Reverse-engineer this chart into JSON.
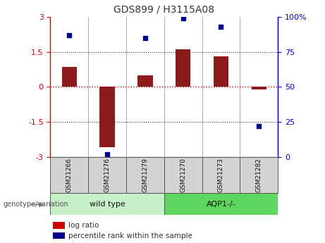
{
  "title": "GDS899 / H3115A08",
  "samples": [
    "GSM21266",
    "GSM21276",
    "GSM21279",
    "GSM21270",
    "GSM21273",
    "GSM21282"
  ],
  "log_ratio": [
    0.85,
    -2.6,
    0.5,
    1.6,
    1.3,
    -0.12
  ],
  "percentile_rank": [
    87,
    2,
    85,
    99,
    93,
    22
  ],
  "bar_color": "#8b1a1a",
  "dot_color": "#00008b",
  "ylim_left": [
    -3,
    3
  ],
  "ylim_right": [
    0,
    100
  ],
  "yticks_left": [
    -3,
    -1.5,
    0,
    1.5,
    3
  ],
  "yticks_right": [
    0,
    25,
    50,
    75,
    100
  ],
  "hline_zero_color": "#cc0000",
  "hline_dotted_color": "#333333",
  "group_label": "genotype/variation",
  "group1_label": "wild type",
  "group2_label": "AQP1-/-",
  "group1_color": "#c8f0c8",
  "group2_color": "#5cd65c",
  "legend_label_ratio": "log ratio",
  "legend_label_pct": "percentile rank within the sample",
  "legend_color_ratio": "#cc0000",
  "legend_color_pct": "#00008b",
  "bg_color": "#ffffff",
  "box_color": "#d3d3d3",
  "box_edge_color": "#555555"
}
